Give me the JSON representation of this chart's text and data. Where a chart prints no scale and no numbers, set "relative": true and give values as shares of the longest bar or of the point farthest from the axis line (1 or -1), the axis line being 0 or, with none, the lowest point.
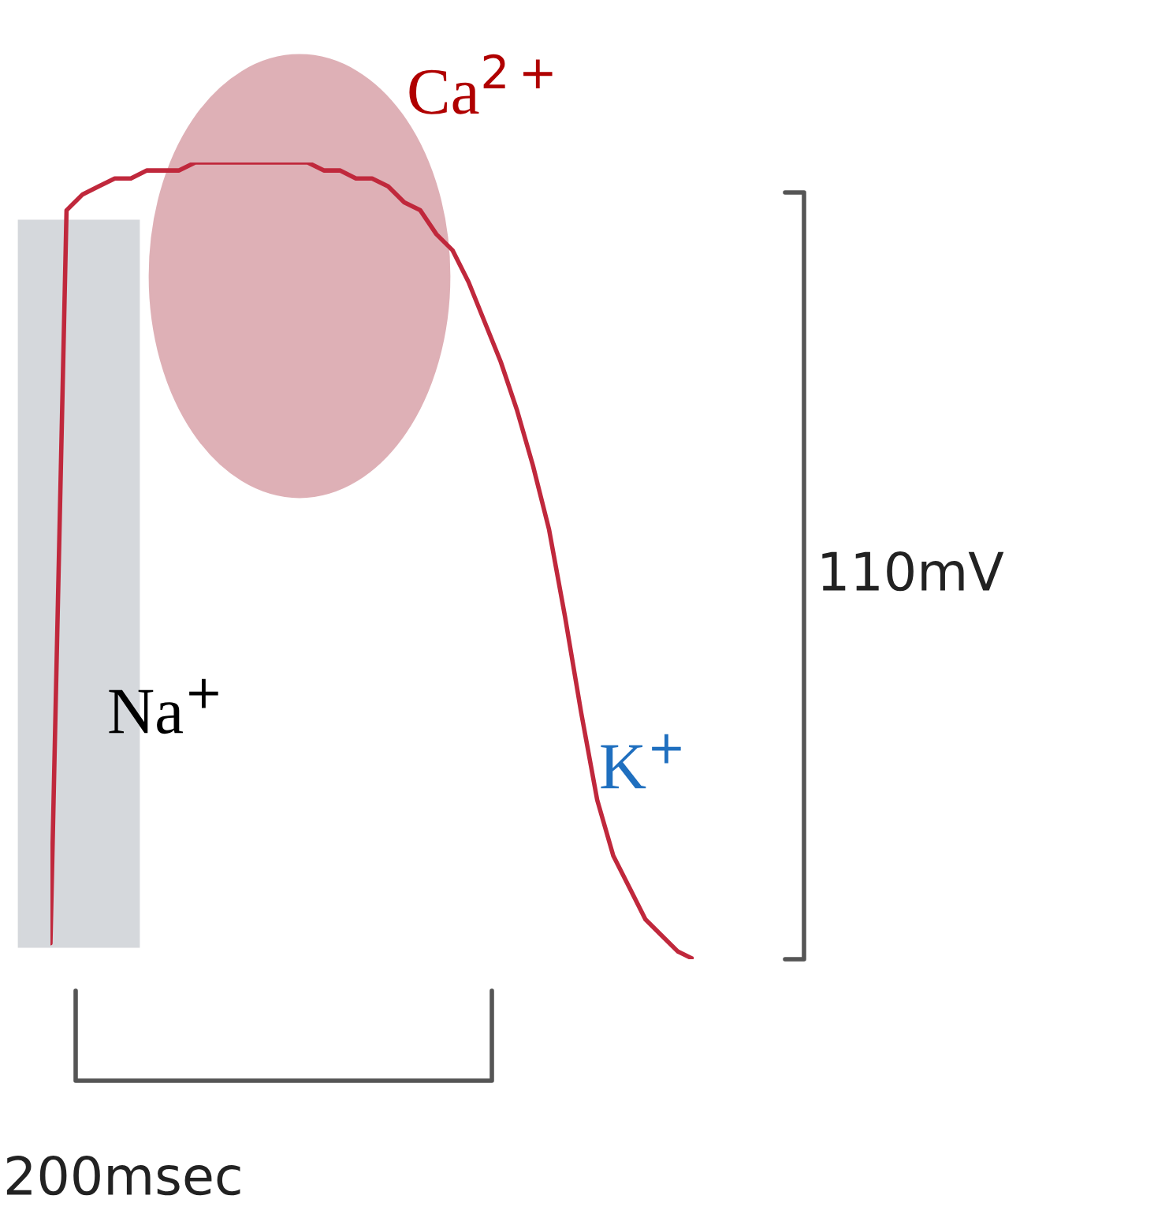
{
  "chart_data": {
    "type": "line",
    "relative": true,
    "categories": [
      null,
      null,
      null,
      null,
      null,
      null,
      null,
      null,
      null,
      null,
      null,
      null,
      null,
      null,
      null,
      null,
      null,
      null,
      null,
      null,
      null,
      null,
      null,
      null,
      null,
      null,
      null,
      null,
      null,
      null,
      null,
      null,
      null,
      null,
      null,
      null,
      null,
      null,
      null,
      null,
      null
    ],
    "series": [
      {
        "color": "#c0283c",
        "values": [
          0.02,
          0.94,
          0.96,
          0.97,
          0.98,
          0.98,
          0.99,
          0.99,
          0.99,
          1.0,
          1.0,
          1.0,
          1.0,
          1.0,
          1.0,
          1.0,
          1.0,
          0.99,
          0.99,
          0.98,
          0.98,
          0.97,
          0.95,
          0.94,
          0.91,
          0.89,
          0.85,
          0.8,
          0.75,
          0.69,
          0.62,
          0.54,
          0.43,
          0.31,
          0.2,
          0.13,
          0.09,
          0.05,
          0.03,
          0.01,
          0.0
        ]
      }
    ],
    "annotations": [
      "Ca$^{2+}$",
      "Na$^{+}$",
      "K$^{+}$",
      "110mV",
      "200msec"
    ]
  }
}
